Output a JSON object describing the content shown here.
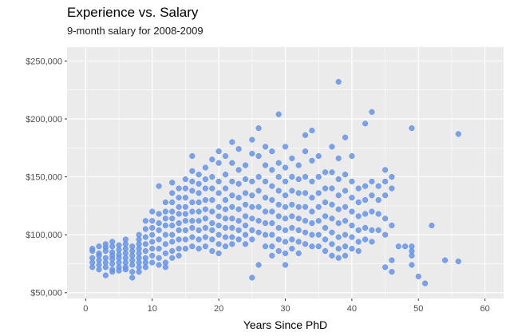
{
  "title": "Experience vs. Salary",
  "subtitle": "9-month salary for 2008-2009",
  "chart_data": {
    "type": "scatter",
    "title": "Experience vs. Salary",
    "subtitle": "9-month salary for 2008-2009",
    "xlabel": "Years Since PhD",
    "ylabel": "",
    "xlim": [
      -2.8,
      62.8
    ],
    "ylim": [
      45000,
      262000
    ],
    "x_ticks": [
      0,
      10,
      20,
      30,
      40,
      50,
      60
    ],
    "x_tick_labels": [
      "0",
      "10",
      "20",
      "30",
      "40",
      "50",
      "60"
    ],
    "y_ticks": [
      50000,
      100000,
      150000,
      200000,
      250000
    ],
    "y_tick_labels": [
      "$50,000",
      "$100,000",
      "$150,000",
      "$200,000",
      "$250,000"
    ],
    "grid": true,
    "legend": "none",
    "point_color": "#6495ED",
    "points": [
      [
        1,
        88000
      ],
      [
        1,
        80000
      ],
      [
        1,
        76000
      ],
      [
        1,
        72000
      ],
      [
        1,
        86000
      ],
      [
        2,
        90000
      ],
      [
        2,
        84000
      ],
      [
        2,
        78000
      ],
      [
        2,
        74000
      ],
      [
        2,
        70000
      ],
      [
        2,
        82000
      ],
      [
        3,
        89000
      ],
      [
        3,
        86000
      ],
      [
        3,
        80000
      ],
      [
        3,
        76000
      ],
      [
        3,
        72000
      ],
      [
        3,
        65000
      ],
      [
        3,
        92000
      ],
      [
        4,
        94000
      ],
      [
        4,
        90000
      ],
      [
        4,
        85000
      ],
      [
        4,
        82000
      ],
      [
        4,
        79000
      ],
      [
        4,
        75000
      ],
      [
        4,
        70000
      ],
      [
        4,
        68000
      ],
      [
        5,
        91000
      ],
      [
        5,
        87000
      ],
      [
        5,
        83000
      ],
      [
        5,
        80000
      ],
      [
        5,
        76000
      ],
      [
        5,
        72000
      ],
      [
        5,
        69000
      ],
      [
        6,
        96000
      ],
      [
        6,
        92000
      ],
      [
        6,
        88000
      ],
      [
        6,
        84000
      ],
      [
        6,
        80000
      ],
      [
        6,
        76000
      ],
      [
        6,
        72000
      ],
      [
        6,
        70000
      ],
      [
        7,
        90000
      ],
      [
        7,
        86000
      ],
      [
        7,
        82000
      ],
      [
        7,
        78000
      ],
      [
        7,
        74000
      ],
      [
        7,
        63000
      ],
      [
        7,
        68000
      ],
      [
        8,
        100000
      ],
      [
        8,
        96000
      ],
      [
        8,
        92000
      ],
      [
        8,
        88000
      ],
      [
        8,
        84000
      ],
      [
        8,
        80000
      ],
      [
        8,
        76000
      ],
      [
        8,
        72000
      ],
      [
        8,
        68000
      ],
      [
        9,
        112000
      ],
      [
        9,
        105000
      ],
      [
        9,
        98000
      ],
      [
        9,
        92000
      ],
      [
        9,
        86000
      ],
      [
        9,
        80000
      ],
      [
        9,
        76000
      ],
      [
        9,
        72000
      ],
      [
        10,
        120000
      ],
      [
        10,
        112000
      ],
      [
        10,
        106000
      ],
      [
        10,
        100000
      ],
      [
        10,
        94000
      ],
      [
        10,
        88000
      ],
      [
        10,
        82000
      ],
      [
        10,
        76000
      ],
      [
        11,
        142000
      ],
      [
        11,
        118000
      ],
      [
        11,
        110000
      ],
      [
        11,
        104000
      ],
      [
        11,
        96000
      ],
      [
        11,
        88000
      ],
      [
        11,
        80000
      ],
      [
        11,
        74000
      ],
      [
        12,
        128000
      ],
      [
        12,
        120000
      ],
      [
        12,
        114000
      ],
      [
        12,
        108000
      ],
      [
        12,
        100000
      ],
      [
        12,
        92000
      ],
      [
        12,
        84000
      ],
      [
        12,
        76000
      ],
      [
        12,
        72000
      ],
      [
        13,
        145000
      ],
      [
        13,
        136000
      ],
      [
        13,
        128000
      ],
      [
        13,
        120000
      ],
      [
        13,
        114000
      ],
      [
        13,
        108000
      ],
      [
        13,
        100000
      ],
      [
        13,
        94000
      ],
      [
        13,
        86000
      ],
      [
        13,
        80000
      ],
      [
        14,
        140000
      ],
      [
        14,
        132000
      ],
      [
        14,
        124000
      ],
      [
        14,
        118000
      ],
      [
        14,
        110000
      ],
      [
        14,
        104000
      ],
      [
        14,
        96000
      ],
      [
        14,
        88000
      ],
      [
        14,
        82000
      ],
      [
        15,
        148000
      ],
      [
        15,
        140000
      ],
      [
        15,
        132000
      ],
      [
        15,
        124000
      ],
      [
        15,
        118000
      ],
      [
        15,
        112000
      ],
      [
        15,
        104000
      ],
      [
        15,
        96000
      ],
      [
        15,
        88000
      ],
      [
        16,
        168000
      ],
      [
        16,
        155000
      ],
      [
        16,
        146000
      ],
      [
        16,
        138000
      ],
      [
        16,
        128000
      ],
      [
        16,
        120000
      ],
      [
        16,
        112000
      ],
      [
        16,
        106000
      ],
      [
        16,
        98000
      ],
      [
        16,
        90000
      ],
      [
        17,
        152000
      ],
      [
        17,
        144000
      ],
      [
        17,
        136000
      ],
      [
        17,
        128000
      ],
      [
        17,
        120000
      ],
      [
        17,
        112000
      ],
      [
        17,
        104000
      ],
      [
        17,
        96000
      ],
      [
        17,
        88000
      ],
      [
        18,
        158000
      ],
      [
        18,
        148000
      ],
      [
        18,
        140000
      ],
      [
        18,
        130000
      ],
      [
        18,
        122000
      ],
      [
        18,
        114000
      ],
      [
        18,
        106000
      ],
      [
        18,
        98000
      ],
      [
        18,
        90000
      ],
      [
        19,
        165000
      ],
      [
        19,
        150000
      ],
      [
        19,
        140000
      ],
      [
        19,
        130000
      ],
      [
        19,
        120000
      ],
      [
        19,
        110000
      ],
      [
        19,
        104000
      ],
      [
        19,
        96000
      ],
      [
        19,
        86000
      ],
      [
        20,
        172000
      ],
      [
        20,
        162000
      ],
      [
        20,
        146000
      ],
      [
        20,
        136000
      ],
      [
        20,
        124000
      ],
      [
        20,
        116000
      ],
      [
        20,
        108000
      ],
      [
        20,
        100000
      ],
      [
        20,
        92000
      ],
      [
        20,
        84000
      ],
      [
        21,
        168000
      ],
      [
        21,
        152000
      ],
      [
        21,
        140000
      ],
      [
        21,
        130000
      ],
      [
        21,
        122000
      ],
      [
        21,
        114000
      ],
      [
        21,
        106000
      ],
      [
        21,
        98000
      ],
      [
        21,
        90000
      ],
      [
        22,
        180000
      ],
      [
        22,
        162000
      ],
      [
        22,
        146000
      ],
      [
        22,
        134000
      ],
      [
        22,
        124000
      ],
      [
        22,
        114000
      ],
      [
        22,
        106000
      ],
      [
        22,
        98000
      ],
      [
        22,
        92000
      ],
      [
        23,
        174000
      ],
      [
        23,
        156000
      ],
      [
        23,
        144000
      ],
      [
        23,
        132000
      ],
      [
        23,
        122000
      ],
      [
        23,
        112000
      ],
      [
        23,
        104000
      ],
      [
        23,
        96000
      ],
      [
        24,
        160000
      ],
      [
        24,
        148000
      ],
      [
        24,
        136000
      ],
      [
        24,
        126000
      ],
      [
        24,
        116000
      ],
      [
        24,
        108000
      ],
      [
        24,
        100000
      ],
      [
        24,
        92000
      ],
      [
        25,
        182000
      ],
      [
        25,
        170000
      ],
      [
        25,
        146000
      ],
      [
        25,
        134000
      ],
      [
        25,
        124000
      ],
      [
        25,
        114000
      ],
      [
        25,
        104000
      ],
      [
        25,
        96000
      ],
      [
        25,
        63000
      ],
      [
        26,
        192000
      ],
      [
        26,
        168000
      ],
      [
        26,
        150000
      ],
      [
        26,
        138000
      ],
      [
        26,
        124000
      ],
      [
        26,
        112000
      ],
      [
        26,
        102000
      ],
      [
        26,
        74000
      ],
      [
        27,
        176000
      ],
      [
        27,
        160000
      ],
      [
        27,
        146000
      ],
      [
        27,
        132000
      ],
      [
        27,
        120000
      ],
      [
        27,
        110000
      ],
      [
        27,
        100000
      ],
      [
        27,
        90000
      ],
      [
        28,
        172000
      ],
      [
        28,
        156000
      ],
      [
        28,
        142000
      ],
      [
        28,
        130000
      ],
      [
        28,
        120000
      ],
      [
        28,
        110000
      ],
      [
        28,
        100000
      ],
      [
        28,
        90000
      ],
      [
        28,
        82000
      ],
      [
        29,
        204000
      ],
      [
        29,
        162000
      ],
      [
        29,
        150000
      ],
      [
        29,
        138000
      ],
      [
        29,
        126000
      ],
      [
        29,
        116000
      ],
      [
        29,
        106000
      ],
      [
        29,
        96000
      ],
      [
        29,
        86000
      ],
      [
        30,
        176000
      ],
      [
        30,
        158000
      ],
      [
        30,
        146000
      ],
      [
        30,
        134000
      ],
      [
        30,
        124000
      ],
      [
        30,
        114000
      ],
      [
        30,
        104000
      ],
      [
        30,
        94000
      ],
      [
        30,
        84000
      ],
      [
        30,
        74000
      ],
      [
        31,
        166000
      ],
      [
        31,
        150000
      ],
      [
        31,
        138000
      ],
      [
        31,
        126000
      ],
      [
        31,
        116000
      ],
      [
        31,
        106000
      ],
      [
        31,
        96000
      ],
      [
        31,
        88000
      ],
      [
        32,
        160000
      ],
      [
        32,
        148000
      ],
      [
        32,
        136000
      ],
      [
        32,
        124000
      ],
      [
        32,
        114000
      ],
      [
        32,
        104000
      ],
      [
        32,
        94000
      ],
      [
        32,
        84000
      ],
      [
        33,
        186000
      ],
      [
        33,
        172000
      ],
      [
        33,
        150000
      ],
      [
        33,
        136000
      ],
      [
        33,
        124000
      ],
      [
        33,
        112000
      ],
      [
        33,
        102000
      ],
      [
        33,
        92000
      ],
      [
        34,
        190000
      ],
      [
        34,
        164000
      ],
      [
        34,
        146000
      ],
      [
        34,
        132000
      ],
      [
        34,
        120000
      ],
      [
        34,
        110000
      ],
      [
        34,
        100000
      ],
      [
        34,
        90000
      ],
      [
        35,
        168000
      ],
      [
        35,
        150000
      ],
      [
        35,
        136000
      ],
      [
        35,
        124000
      ],
      [
        35,
        112000
      ],
      [
        35,
        100000
      ],
      [
        35,
        90000
      ],
      [
        36,
        154000
      ],
      [
        36,
        140000
      ],
      [
        36,
        128000
      ],
      [
        36,
        116000
      ],
      [
        36,
        106000
      ],
      [
        36,
        96000
      ],
      [
        36,
        86000
      ],
      [
        37,
        176000
      ],
      [
        37,
        154000
      ],
      [
        37,
        140000
      ],
      [
        37,
        126000
      ],
      [
        37,
        114000
      ],
      [
        37,
        102000
      ],
      [
        37,
        92000
      ],
      [
        37,
        82000
      ],
      [
        38,
        232000
      ],
      [
        38,
        166000
      ],
      [
        38,
        148000
      ],
      [
        38,
        134000
      ],
      [
        38,
        122000
      ],
      [
        38,
        110000
      ],
      [
        38,
        98000
      ],
      [
        38,
        88000
      ],
      [
        38,
        80000
      ],
      [
        39,
        184000
      ],
      [
        39,
        152000
      ],
      [
        39,
        138000
      ],
      [
        39,
        124000
      ],
      [
        39,
        112000
      ],
      [
        39,
        100000
      ],
      [
        39,
        90000
      ],
      [
        39,
        82000
      ],
      [
        40,
        168000
      ],
      [
        40,
        146000
      ],
      [
        40,
        132000
      ],
      [
        40,
        120000
      ],
      [
        40,
        108000
      ],
      [
        40,
        98000
      ],
      [
        40,
        88000
      ],
      [
        41,
        140000
      ],
      [
        41,
        128000
      ],
      [
        41,
        116000
      ],
      [
        41,
        104000
      ],
      [
        41,
        94000
      ],
      [
        41,
        86000
      ],
      [
        42,
        196000
      ],
      [
        42,
        142000
      ],
      [
        42,
        130000
      ],
      [
        42,
        118000
      ],
      [
        42,
        106000
      ],
      [
        42,
        96000
      ],
      [
        43,
        206000
      ],
      [
        43,
        146000
      ],
      [
        43,
        134000
      ],
      [
        43,
        120000
      ],
      [
        43,
        104000
      ],
      [
        43,
        94000
      ],
      [
        44,
        142000
      ],
      [
        44,
        130000
      ],
      [
        44,
        118000
      ],
      [
        44,
        104000
      ],
      [
        45,
        156000
      ],
      [
        45,
        146000
      ],
      [
        45,
        134000
      ],
      [
        45,
        114000
      ],
      [
        45,
        100000
      ],
      [
        45,
        72000
      ],
      [
        46,
        150000
      ],
      [
        46,
        140000
      ],
      [
        46,
        108000
      ],
      [
        46,
        78000
      ],
      [
        46,
        68000
      ],
      [
        47,
        90000
      ],
      [
        48,
        90000
      ],
      [
        49,
        192000
      ],
      [
        49,
        90000
      ],
      [
        49,
        86000
      ],
      [
        49,
        82000
      ],
      [
        49,
        74000
      ],
      [
        50,
        64000
      ],
      [
        51,
        58000
      ],
      [
        52,
        108000
      ],
      [
        54,
        78000
      ],
      [
        56,
        187000
      ],
      [
        56,
        77000
      ]
    ]
  }
}
